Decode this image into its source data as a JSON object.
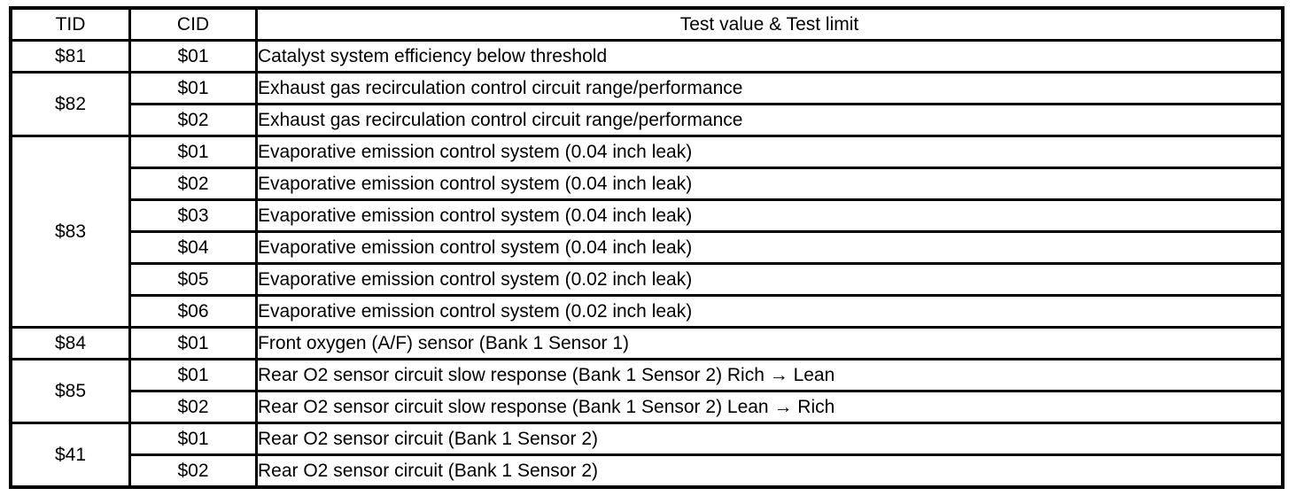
{
  "colors": {
    "border": "#000000",
    "background": "#ffffff",
    "text": "#000000"
  },
  "table": {
    "columns": [
      "TID",
      "CID",
      "Test value & Test limit"
    ],
    "groups": [
      {
        "tid": "$81",
        "rows": [
          {
            "cid": "$01",
            "desc": "Catalyst system efficiency below threshold"
          }
        ]
      },
      {
        "tid": "$82",
        "rows": [
          {
            "cid": "$01",
            "desc": "Exhaust gas recirculation control circuit range/performance"
          },
          {
            "cid": "$02",
            "desc": "Exhaust gas recirculation control circuit range/performance"
          }
        ]
      },
      {
        "tid": "$83",
        "rows": [
          {
            "cid": "$01",
            "desc": "Evaporative emission control system (0.04 inch leak)"
          },
          {
            "cid": "$02",
            "desc": "Evaporative emission control system (0.04 inch leak)"
          },
          {
            "cid": "$03",
            "desc": "Evaporative emission control system (0.04 inch leak)"
          },
          {
            "cid": "$04",
            "desc": "Evaporative emission control system (0.04 inch leak)"
          },
          {
            "cid": "$05",
            "desc": "Evaporative emission control system (0.02 inch leak)"
          },
          {
            "cid": "$06",
            "desc": "Evaporative emission control system (0.02 inch leak)"
          }
        ]
      },
      {
        "tid": "$84",
        "rows": [
          {
            "cid": "$01",
            "desc": "Front oxygen (A/F) sensor (Bank 1 Sensor 1)"
          }
        ]
      },
      {
        "tid": "$85",
        "rows": [
          {
            "cid": "$01",
            "desc": "Rear O2 sensor circuit slow response (Bank 1 Sensor 2) Rich → Lean"
          },
          {
            "cid": "$02",
            "desc": "Rear O2 sensor circuit slow response (Bank 1 Sensor 2) Lean → Rich"
          }
        ]
      },
      {
        "tid": "$41",
        "rows": [
          {
            "cid": "$01",
            "desc": "Rear O2 sensor circuit (Bank 1 Sensor 2)"
          },
          {
            "cid": "$02",
            "desc": "Rear O2 sensor circuit (Bank 1 Sensor 2)"
          }
        ]
      }
    ]
  }
}
